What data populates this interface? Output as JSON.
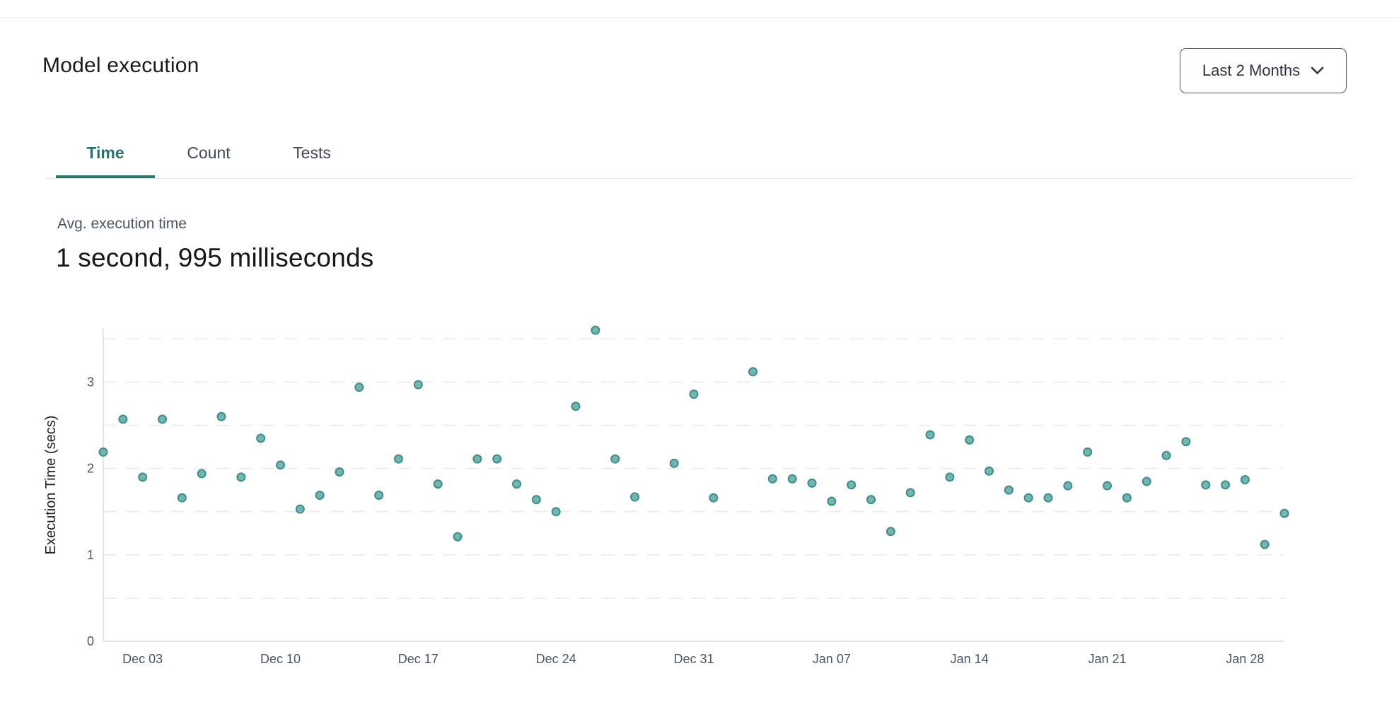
{
  "header": {
    "title": "Model execution",
    "range_selector": {
      "label": "Last 2 Months",
      "icon": "chevron-down-icon"
    }
  },
  "tabs": [
    {
      "label": "Time",
      "active": true
    },
    {
      "label": "Count",
      "active": false
    },
    {
      "label": "Tests",
      "active": false
    }
  ],
  "summary": {
    "label": "Avg. execution time",
    "value": "1 second, 995 milliseconds"
  },
  "colors": {
    "accent_teal": "#2d716d",
    "dot_fill": "#72b6b1",
    "dot_stroke": "#3e8d88",
    "grid": "#e8eaef",
    "axis": "#dbdee4",
    "tick_text": "#4b5568",
    "axis_title_text": "#1d2127",
    "tab_inactive_text": "#3f4a5c",
    "muted_text": "#4b5568"
  },
  "chart_data": {
    "type": "scatter",
    "title": "",
    "xlabel": "",
    "ylabel": "Execution Time (secs)",
    "ylim": [
      0,
      3.62
    ],
    "yticks": [
      0,
      1,
      2,
      3
    ],
    "gridlines_at": [
      0.5,
      1,
      1.5,
      2,
      2.5,
      3,
      3.5
    ],
    "grid": "dashed-horizontal",
    "legend": "none",
    "x_axis": {
      "unit": "day",
      "start_date": "Dec 01",
      "end_date": "Jan 30",
      "day_range": [
        0,
        60
      ]
    },
    "xticks": [
      {
        "day": 2,
        "label": "Dec 03"
      },
      {
        "day": 9,
        "label": "Dec 10"
      },
      {
        "day": 16,
        "label": "Dec 17"
      },
      {
        "day": 23,
        "label": "Dec 24"
      },
      {
        "day": 30,
        "label": "Dec 31"
      },
      {
        "day": 37,
        "label": "Jan 07"
      },
      {
        "day": 44,
        "label": "Jan 14"
      },
      {
        "day": 51,
        "label": "Jan 21"
      },
      {
        "day": 58,
        "label": "Jan 28"
      }
    ],
    "points": [
      {
        "day": 0,
        "date": "Dec 01",
        "value": 2.19
      },
      {
        "day": 1,
        "date": "Dec 02",
        "value": 2.57
      },
      {
        "day": 2,
        "date": "Dec 03",
        "value": 1.9
      },
      {
        "day": 3,
        "date": "Dec 04",
        "value": 2.57
      },
      {
        "day": 4,
        "date": "Dec 05",
        "value": 1.66
      },
      {
        "day": 5,
        "date": "Dec 06",
        "value": 1.94
      },
      {
        "day": 6,
        "date": "Dec 07",
        "value": 2.6
      },
      {
        "day": 7,
        "date": "Dec 08",
        "value": 1.9
      },
      {
        "day": 8,
        "date": "Dec 09",
        "value": 2.35
      },
      {
        "day": 9,
        "date": "Dec 10",
        "value": 2.04
      },
      {
        "day": 10,
        "date": "Dec 11",
        "value": 1.53
      },
      {
        "day": 11,
        "date": "Dec 12",
        "value": 1.69
      },
      {
        "day": 12,
        "date": "Dec 13",
        "value": 1.96
      },
      {
        "day": 13,
        "date": "Dec 14",
        "value": 2.94
      },
      {
        "day": 14,
        "date": "Dec 15",
        "value": 1.69
      },
      {
        "day": 15,
        "date": "Dec 16",
        "value": 2.11
      },
      {
        "day": 16,
        "date": "Dec 17",
        "value": 2.97
      },
      {
        "day": 17,
        "date": "Dec 18",
        "value": 1.82
      },
      {
        "day": 18,
        "date": "Dec 19",
        "value": 1.21
      },
      {
        "day": 19,
        "date": "Dec 20",
        "value": 2.11
      },
      {
        "day": 20,
        "date": "Dec 21",
        "value": 2.11
      },
      {
        "day": 21,
        "date": "Dec 22",
        "value": 1.82
      },
      {
        "day": 22,
        "date": "Dec 23",
        "value": 1.64
      },
      {
        "day": 23,
        "date": "Dec 24",
        "value": 1.5
      },
      {
        "day": 24,
        "date": "Dec 25",
        "value": 2.72
      },
      {
        "day": 25,
        "date": "Dec 26",
        "value": 3.6
      },
      {
        "day": 26,
        "date": "Dec 27",
        "value": 2.11
      },
      {
        "day": 27,
        "date": "Dec 28",
        "value": 1.67
      },
      {
        "day": 29,
        "date": "Dec 30",
        "value": 2.06
      },
      {
        "day": 30,
        "date": "Dec 31",
        "value": 2.86
      },
      {
        "day": 31,
        "date": "Jan 01",
        "value": 1.66
      },
      {
        "day": 33,
        "date": "Jan 03",
        "value": 3.12
      },
      {
        "day": 34,
        "date": "Jan 04",
        "value": 1.88
      },
      {
        "day": 35,
        "date": "Jan 05",
        "value": 1.88
      },
      {
        "day": 36,
        "date": "Jan 06",
        "value": 1.83
      },
      {
        "day": 37,
        "date": "Jan 07",
        "value": 1.62
      },
      {
        "day": 38,
        "date": "Jan 08",
        "value": 1.81
      },
      {
        "day": 39,
        "date": "Jan 09",
        "value": 1.64
      },
      {
        "day": 40,
        "date": "Jan 10",
        "value": 1.27
      },
      {
        "day": 41,
        "date": "Jan 11",
        "value": 1.72
      },
      {
        "day": 42,
        "date": "Jan 12",
        "value": 2.39
      },
      {
        "day": 43,
        "date": "Jan 13",
        "value": 1.9
      },
      {
        "day": 44,
        "date": "Jan 14",
        "value": 2.33
      },
      {
        "day": 45,
        "date": "Jan 15",
        "value": 1.97
      },
      {
        "day": 46,
        "date": "Jan 16",
        "value": 1.75
      },
      {
        "day": 47,
        "date": "Jan 17",
        "value": 1.66
      },
      {
        "day": 48,
        "date": "Jan 18",
        "value": 1.66
      },
      {
        "day": 49,
        "date": "Jan 19",
        "value": 1.8
      },
      {
        "day": 50,
        "date": "Jan 20",
        "value": 2.19
      },
      {
        "day": 51,
        "date": "Jan 21",
        "value": 1.8
      },
      {
        "day": 52,
        "date": "Jan 22",
        "value": 1.66
      },
      {
        "day": 53,
        "date": "Jan 23",
        "value": 1.85
      },
      {
        "day": 54,
        "date": "Jan 24",
        "value": 2.15
      },
      {
        "day": 55,
        "date": "Jan 25",
        "value": 2.31
      },
      {
        "day": 56,
        "date": "Jan 26",
        "value": 1.81
      },
      {
        "day": 57,
        "date": "Jan 27",
        "value": 1.81
      },
      {
        "day": 58,
        "date": "Jan 28",
        "value": 1.87
      },
      {
        "day": 59,
        "date": "Jan 29",
        "value": 1.12
      },
      {
        "day": 60,
        "date": "Jan 30",
        "value": 1.48
      }
    ]
  }
}
